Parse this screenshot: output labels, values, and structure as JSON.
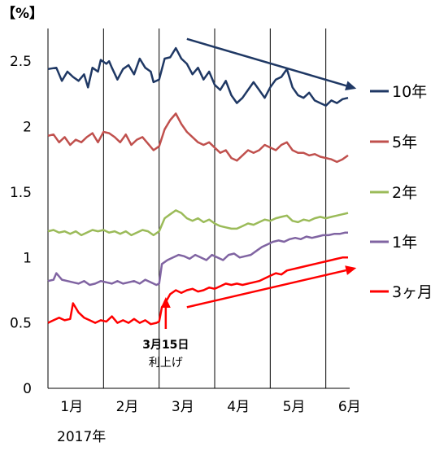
{
  "chart_data": {
    "type": "line",
    "unit_label": "【%】",
    "year_label": "2017年",
    "x_tick_labels": [
      "1月",
      "2月",
      "3月",
      "4月",
      "5月",
      "6月"
    ],
    "y_ticks": [
      0,
      0.5,
      1,
      1.5,
      2,
      2.5
    ],
    "y_tick_labels": [
      "0",
      "0.5",
      "1",
      "1.5",
      "2",
      "2.5"
    ],
    "ylim": [
      0,
      2.75
    ],
    "xlim": [
      0,
      5.4
    ],
    "grid": "vertical",
    "legend_position": "right",
    "series": [
      {
        "name": "10年",
        "color": "#1f3864",
        "points": [
          [
            0.0,
            2.44
          ],
          [
            0.15,
            2.45
          ],
          [
            0.25,
            2.35
          ],
          [
            0.35,
            2.42
          ],
          [
            0.45,
            2.38
          ],
          [
            0.55,
            2.35
          ],
          [
            0.65,
            2.4
          ],
          [
            0.72,
            2.3
          ],
          [
            0.8,
            2.45
          ],
          [
            0.9,
            2.42
          ],
          [
            0.95,
            2.51
          ],
          [
            1.05,
            2.48
          ],
          [
            1.1,
            2.5
          ],
          [
            1.15,
            2.45
          ],
          [
            1.25,
            2.36
          ],
          [
            1.35,
            2.44
          ],
          [
            1.45,
            2.47
          ],
          [
            1.55,
            2.4
          ],
          [
            1.65,
            2.52
          ],
          [
            1.75,
            2.45
          ],
          [
            1.85,
            2.42
          ],
          [
            1.9,
            2.34
          ],
          [
            2.0,
            2.36
          ],
          [
            2.1,
            2.52
          ],
          [
            2.2,
            2.53
          ],
          [
            2.3,
            2.6
          ],
          [
            2.4,
            2.52
          ],
          [
            2.5,
            2.48
          ],
          [
            2.6,
            2.4
          ],
          [
            2.7,
            2.45
          ],
          [
            2.8,
            2.36
          ],
          [
            2.9,
            2.42
          ],
          [
            3.0,
            2.32
          ],
          [
            3.1,
            2.28
          ],
          [
            3.2,
            2.35
          ],
          [
            3.3,
            2.24
          ],
          [
            3.4,
            2.18
          ],
          [
            3.5,
            2.22
          ],
          [
            3.6,
            2.28
          ],
          [
            3.7,
            2.34
          ],
          [
            3.8,
            2.28
          ],
          [
            3.9,
            2.22
          ],
          [
            4.0,
            2.3
          ],
          [
            4.1,
            2.36
          ],
          [
            4.2,
            2.38
          ],
          [
            4.3,
            2.44
          ],
          [
            4.4,
            2.3
          ],
          [
            4.5,
            2.24
          ],
          [
            4.6,
            2.22
          ],
          [
            4.7,
            2.26
          ],
          [
            4.8,
            2.2
          ],
          [
            4.9,
            2.18
          ],
          [
            5.0,
            2.16
          ],
          [
            5.1,
            2.2
          ],
          [
            5.2,
            2.18
          ],
          [
            5.3,
            2.21
          ],
          [
            5.4,
            2.22
          ]
        ]
      },
      {
        "name": "5年",
        "color": "#c0504d",
        "points": [
          [
            0.0,
            1.93
          ],
          [
            0.1,
            1.94
          ],
          [
            0.2,
            1.88
          ],
          [
            0.3,
            1.92
          ],
          [
            0.4,
            1.86
          ],
          [
            0.5,
            1.9
          ],
          [
            0.6,
            1.88
          ],
          [
            0.7,
            1.92
          ],
          [
            0.8,
            1.95
          ],
          [
            0.9,
            1.88
          ],
          [
            1.0,
            1.96
          ],
          [
            1.1,
            1.95
          ],
          [
            1.2,
            1.92
          ],
          [
            1.3,
            1.88
          ],
          [
            1.4,
            1.94
          ],
          [
            1.5,
            1.86
          ],
          [
            1.6,
            1.9
          ],
          [
            1.7,
            1.92
          ],
          [
            1.8,
            1.87
          ],
          [
            1.9,
            1.82
          ],
          [
            2.0,
            1.85
          ],
          [
            2.1,
            1.98
          ],
          [
            2.2,
            2.05
          ],
          [
            2.3,
            2.1
          ],
          [
            2.4,
            2.02
          ],
          [
            2.5,
            1.96
          ],
          [
            2.6,
            1.92
          ],
          [
            2.7,
            1.88
          ],
          [
            2.8,
            1.86
          ],
          [
            2.9,
            1.88
          ],
          [
            3.0,
            1.84
          ],
          [
            3.1,
            1.8
          ],
          [
            3.2,
            1.82
          ],
          [
            3.3,
            1.76
          ],
          [
            3.4,
            1.74
          ],
          [
            3.5,
            1.78
          ],
          [
            3.6,
            1.82
          ],
          [
            3.7,
            1.8
          ],
          [
            3.8,
            1.82
          ],
          [
            3.9,
            1.86
          ],
          [
            4.0,
            1.84
          ],
          [
            4.1,
            1.82
          ],
          [
            4.2,
            1.86
          ],
          [
            4.3,
            1.88
          ],
          [
            4.4,
            1.82
          ],
          [
            4.5,
            1.8
          ],
          [
            4.6,
            1.8
          ],
          [
            4.7,
            1.78
          ],
          [
            4.8,
            1.79
          ],
          [
            4.9,
            1.77
          ],
          [
            5.0,
            1.76
          ],
          [
            5.1,
            1.75
          ],
          [
            5.2,
            1.73
          ],
          [
            5.3,
            1.75
          ],
          [
            5.4,
            1.78
          ]
        ]
      },
      {
        "name": "2年",
        "color": "#9bbb59",
        "points": [
          [
            0.0,
            1.2
          ],
          [
            0.1,
            1.21
          ],
          [
            0.2,
            1.19
          ],
          [
            0.3,
            1.2
          ],
          [
            0.4,
            1.18
          ],
          [
            0.5,
            1.2
          ],
          [
            0.6,
            1.17
          ],
          [
            0.7,
            1.19
          ],
          [
            0.8,
            1.21
          ],
          [
            0.9,
            1.2
          ],
          [
            1.0,
            1.21
          ],
          [
            1.1,
            1.19
          ],
          [
            1.2,
            1.2
          ],
          [
            1.3,
            1.18
          ],
          [
            1.4,
            1.2
          ],
          [
            1.5,
            1.17
          ],
          [
            1.6,
            1.19
          ],
          [
            1.7,
            1.21
          ],
          [
            1.8,
            1.2
          ],
          [
            1.9,
            1.17
          ],
          [
            2.0,
            1.2
          ],
          [
            2.1,
            1.3
          ],
          [
            2.2,
            1.33
          ],
          [
            2.3,
            1.36
          ],
          [
            2.4,
            1.34
          ],
          [
            2.5,
            1.3
          ],
          [
            2.6,
            1.28
          ],
          [
            2.7,
            1.3
          ],
          [
            2.8,
            1.27
          ],
          [
            2.9,
            1.29
          ],
          [
            3.0,
            1.26
          ],
          [
            3.1,
            1.24
          ],
          [
            3.2,
            1.23
          ],
          [
            3.3,
            1.22
          ],
          [
            3.4,
            1.22
          ],
          [
            3.5,
            1.24
          ],
          [
            3.6,
            1.26
          ],
          [
            3.7,
            1.25
          ],
          [
            3.8,
            1.27
          ],
          [
            3.9,
            1.29
          ],
          [
            4.0,
            1.28
          ],
          [
            4.1,
            1.3
          ],
          [
            4.2,
            1.31
          ],
          [
            4.3,
            1.32
          ],
          [
            4.4,
            1.28
          ],
          [
            4.5,
            1.27
          ],
          [
            4.6,
            1.29
          ],
          [
            4.7,
            1.28
          ],
          [
            4.8,
            1.3
          ],
          [
            4.9,
            1.31
          ],
          [
            5.0,
            1.3
          ],
          [
            5.1,
            1.31
          ],
          [
            5.2,
            1.32
          ],
          [
            5.3,
            1.33
          ],
          [
            5.4,
            1.34
          ]
        ]
      },
      {
        "name": "1年",
        "color": "#8064a2",
        "points": [
          [
            0.0,
            0.82
          ],
          [
            0.1,
            0.83
          ],
          [
            0.15,
            0.88
          ],
          [
            0.25,
            0.83
          ],
          [
            0.35,
            0.82
          ],
          [
            0.45,
            0.81
          ],
          [
            0.55,
            0.8
          ],
          [
            0.65,
            0.82
          ],
          [
            0.75,
            0.79
          ],
          [
            0.85,
            0.8
          ],
          [
            0.95,
            0.82
          ],
          [
            1.05,
            0.81
          ],
          [
            1.15,
            0.8
          ],
          [
            1.25,
            0.82
          ],
          [
            1.35,
            0.8
          ],
          [
            1.45,
            0.81
          ],
          [
            1.55,
            0.82
          ],
          [
            1.65,
            0.8
          ],
          [
            1.75,
            0.83
          ],
          [
            1.85,
            0.81
          ],
          [
            1.95,
            0.79
          ],
          [
            2.0,
            0.8
          ],
          [
            2.05,
            0.95
          ],
          [
            2.15,
            0.98
          ],
          [
            2.25,
            1.0
          ],
          [
            2.35,
            1.02
          ],
          [
            2.45,
            1.01
          ],
          [
            2.55,
            0.99
          ],
          [
            2.65,
            1.02
          ],
          [
            2.75,
            1.0
          ],
          [
            2.85,
            0.98
          ],
          [
            2.95,
            1.02
          ],
          [
            3.05,
            1.0
          ],
          [
            3.15,
            0.98
          ],
          [
            3.25,
            1.02
          ],
          [
            3.35,
            1.03
          ],
          [
            3.45,
            1.0
          ],
          [
            3.55,
            1.01
          ],
          [
            3.65,
            1.02
          ],
          [
            3.75,
            1.05
          ],
          [
            3.85,
            1.08
          ],
          [
            3.95,
            1.1
          ],
          [
            4.05,
            1.12
          ],
          [
            4.15,
            1.13
          ],
          [
            4.25,
            1.12
          ],
          [
            4.35,
            1.14
          ],
          [
            4.45,
            1.15
          ],
          [
            4.55,
            1.14
          ],
          [
            4.65,
            1.16
          ],
          [
            4.75,
            1.15
          ],
          [
            4.85,
            1.16
          ],
          [
            4.95,
            1.17
          ],
          [
            5.05,
            1.17
          ],
          [
            5.15,
            1.18
          ],
          [
            5.25,
            1.18
          ],
          [
            5.35,
            1.19
          ],
          [
            5.4,
            1.19
          ]
        ]
      },
      {
        "name": "3ヶ月",
        "color": "#ff0000",
        "points": [
          [
            0.0,
            0.5
          ],
          [
            0.1,
            0.52
          ],
          [
            0.2,
            0.54
          ],
          [
            0.3,
            0.52
          ],
          [
            0.4,
            0.53
          ],
          [
            0.45,
            0.65
          ],
          [
            0.55,
            0.58
          ],
          [
            0.65,
            0.54
          ],
          [
            0.75,
            0.52
          ],
          [
            0.85,
            0.5
          ],
          [
            0.95,
            0.52
          ],
          [
            1.05,
            0.51
          ],
          [
            1.15,
            0.55
          ],
          [
            1.25,
            0.5
          ],
          [
            1.35,
            0.52
          ],
          [
            1.45,
            0.5
          ],
          [
            1.55,
            0.53
          ],
          [
            1.65,
            0.5
          ],
          [
            1.75,
            0.52
          ],
          [
            1.85,
            0.49
          ],
          [
            1.95,
            0.5
          ],
          [
            2.0,
            0.51
          ],
          [
            2.05,
            0.62
          ],
          [
            2.12,
            0.66
          ],
          [
            2.2,
            0.72
          ],
          [
            2.3,
            0.75
          ],
          [
            2.4,
            0.73
          ],
          [
            2.5,
            0.75
          ],
          [
            2.6,
            0.76
          ],
          [
            2.7,
            0.74
          ],
          [
            2.8,
            0.75
          ],
          [
            2.9,
            0.77
          ],
          [
            3.0,
            0.76
          ],
          [
            3.1,
            0.78
          ],
          [
            3.2,
            0.8
          ],
          [
            3.3,
            0.79
          ],
          [
            3.4,
            0.8
          ],
          [
            3.5,
            0.79
          ],
          [
            3.6,
            0.8
          ],
          [
            3.7,
            0.81
          ],
          [
            3.8,
            0.82
          ],
          [
            3.9,
            0.84
          ],
          [
            4.0,
            0.86
          ],
          [
            4.1,
            0.88
          ],
          [
            4.2,
            0.87
          ],
          [
            4.3,
            0.9
          ],
          [
            4.4,
            0.91
          ],
          [
            4.5,
            0.92
          ],
          [
            4.6,
            0.93
          ],
          [
            4.7,
            0.94
          ],
          [
            4.8,
            0.95
          ],
          [
            4.9,
            0.96
          ],
          [
            5.0,
            0.97
          ],
          [
            5.1,
            0.98
          ],
          [
            5.2,
            0.99
          ],
          [
            5.3,
            1.0
          ],
          [
            5.4,
            1.0
          ]
        ]
      }
    ],
    "annotations": {
      "event_label_line1": "3月15日",
      "event_label_line2": "利上げ",
      "event_x": 2.5
    },
    "trend_arrows": [
      {
        "name": "10年-trend-arrow",
        "color": "#1f3864",
        "from": [
          2.5,
          2.67
        ],
        "to": [
          5.55,
          2.29
        ]
      },
      {
        "name": "3ヶ月-trend-arrow",
        "color": "#ff0000",
        "from": [
          2.5,
          0.62
        ],
        "to": [
          5.55,
          0.92
        ]
      }
    ]
  }
}
